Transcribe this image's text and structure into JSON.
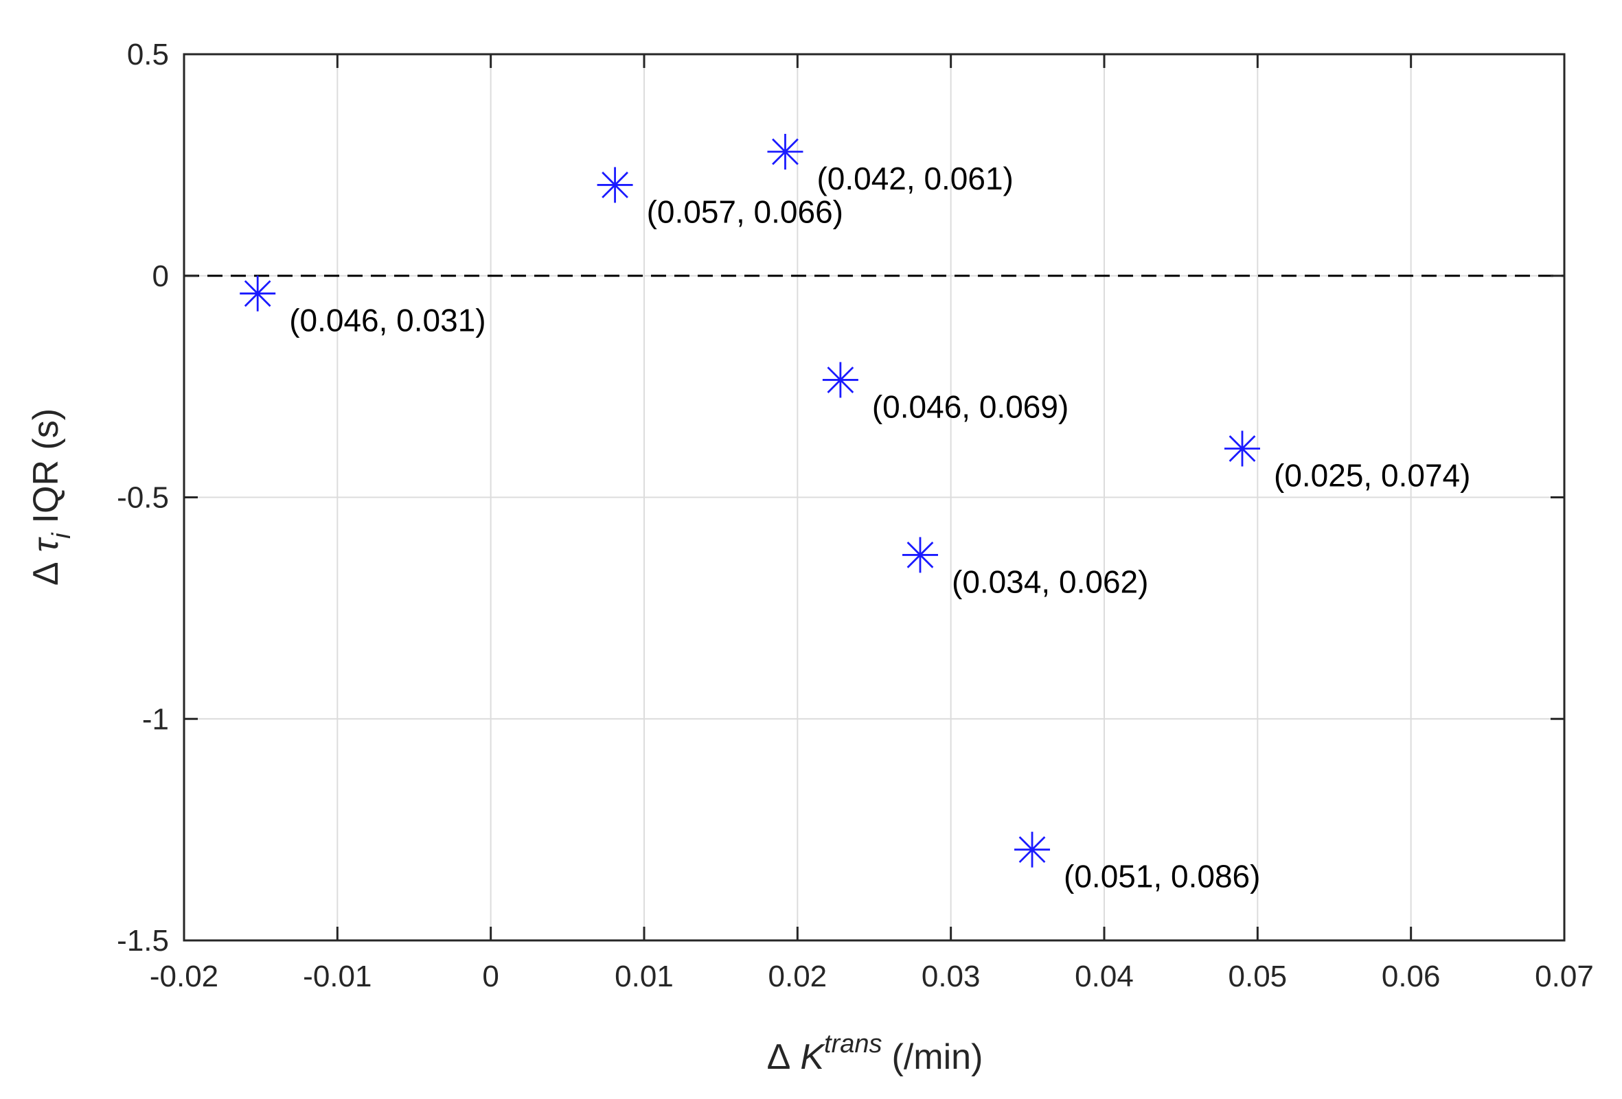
{
  "chart_data": {
    "type": "scatter",
    "title": "",
    "xlabel": {
      "prefix": "Δ",
      "symbol": "K",
      "superscript": "trans",
      "unit": "(/min)"
    },
    "ylabel": {
      "prefix": "Δ",
      "symbol": "τ",
      "subscript": "i",
      "suffix": "IQR (s)"
    },
    "xlim": [
      -0.02,
      0.07
    ],
    "ylim": [
      -1.5,
      0.5
    ],
    "xticks": [
      -0.02,
      -0.01,
      0,
      0.01,
      0.02,
      0.03,
      0.04,
      0.05,
      0.06,
      0.07
    ],
    "xtick_labels": [
      "-0.02",
      "-0.01",
      "0",
      "0.01",
      "0.02",
      "0.03",
      "0.04",
      "0.05",
      "0.06",
      "0.07"
    ],
    "yticks": [
      -1.5,
      -1,
      -0.5,
      0,
      0.5
    ],
    "ytick_labels": [
      "-1.5",
      "-1",
      "-0.5",
      "0",
      "0.5"
    ],
    "grid": true,
    "reference_line": {
      "y": 0,
      "style": "dashed"
    },
    "marker": "asterisk",
    "marker_color": "#1a1aff",
    "points": [
      {
        "x": -0.0152,
        "y": -0.04,
        "label": "(0.046, 0.031)"
      },
      {
        "x": 0.0081,
        "y": 0.205,
        "label": "(0.057, 0.066)"
      },
      {
        "x": 0.0192,
        "y": 0.28,
        "label": "(0.042, 0.061)"
      },
      {
        "x": 0.0228,
        "y": -0.235,
        "label": "(0.046, 0.069)"
      },
      {
        "x": 0.028,
        "y": -0.63,
        "label": "(0.034, 0.062)"
      },
      {
        "x": 0.0353,
        "y": -1.295,
        "label": "(0.051, 0.086)"
      },
      {
        "x": 0.049,
        "y": -0.39,
        "label": "(0.025, 0.074)"
      }
    ]
  }
}
